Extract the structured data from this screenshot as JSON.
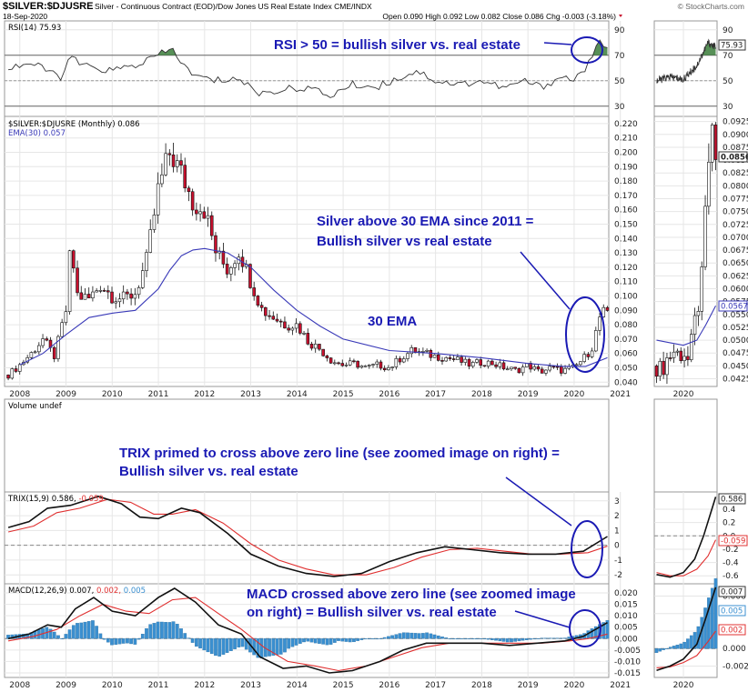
{
  "header": {
    "symbol": "$SILVER:$DJUSRE",
    "description": "Silver - Continuous Contract (EOD)/Dow Jones US Real Estate Index  CME/INDX",
    "brand": "© StockCharts.com",
    "date": "18-Sep-2020",
    "quote": "Open 0.090  High 0.092  Low 0.082  Close 0.086  Chg -0.003 (-3.18%)"
  },
  "colors": {
    "up": "#ffffff",
    "down": "#c8102e",
    "ema": "#3a3ab8",
    "trix": "#111111",
    "signal": "#e03030",
    "hist": "#3a8fd0",
    "annotation": "#1a1ab4",
    "rsi_fill": "#3a7d3a"
  },
  "panels": {
    "rsi_label": "RSI(14) 75.93",
    "rsi_value_tag": "75.93",
    "price_label": "$SILVER:$DJUSRE (Monthly) 0.086",
    "ema_label": "EMA(30) 0.057",
    "volume_label": "Volume undef",
    "trix_label": "TRIX(15,9) 0.586, -0.059",
    "trix_label_main": "TRIX(15,9) 0.586,",
    "trix_label_sig": "-0.059",
    "macd_label_main": "MACD(12,26,9) 0.007,",
    "macd_label_sig": "0.002,",
    "macd_label_hist": "0.005",
    "price_tag": "0.0856",
    "ema_tag": "0.0567",
    "trix_tag": "0.586",
    "trix_sig_tag": "-0.059",
    "macd_tag": "0.007",
    "macd_hist_tag": "0.005",
    "macd_sig_tag": "0.002"
  },
  "annotations": {
    "rsi": "RSI > 50 = bullish silver vs. real estate",
    "ema_line1": "Silver above 30 EMA since 2011 =",
    "ema_line2": "Bullish silver vs real estate",
    "ema_label": "30 EMA",
    "trix_line1": "TRIX primed to cross above zero line (see zoomed image on right) =",
    "trix_line2": "Bullish silver vs. real estate",
    "macd_line1": "MACD crossed above zero line (see zoomed image",
    "macd_line2": "on right) = Bullish silver vs. real estate"
  },
  "chart_data": {
    "type": "line",
    "title": "$SILVER:$DJUSRE",
    "frequency": "monthly",
    "x_range": [
      2007.67,
      2020.75
    ],
    "years": [
      "2008",
      "2009",
      "2010",
      "2011",
      "2012",
      "2013",
      "2014",
      "2015",
      "2016",
      "2017",
      "2018",
      "2019",
      "2020",
      "2021"
    ],
    "price_ticks": [
      0.04,
      0.05,
      0.06,
      0.07,
      0.08,
      0.09,
      0.1,
      0.11,
      0.12,
      0.13,
      0.14,
      0.15,
      0.16,
      0.17,
      0.18,
      0.19,
      0.2,
      0.21,
      0.22
    ],
    "price_ylim": [
      0.037,
      0.225
    ],
    "price_closes": [
      {
        "x": 2007.75,
        "y": 0.045
      },
      {
        "x": 2008.0,
        "y": 0.052
      },
      {
        "x": 2008.25,
        "y": 0.06
      },
      {
        "x": 2008.5,
        "y": 0.07
      },
      {
        "x": 2008.75,
        "y": 0.058
      },
      {
        "x": 2009.0,
        "y": 0.09
      },
      {
        "x": 2009.1,
        "y": 0.135
      },
      {
        "x": 2009.25,
        "y": 0.1
      },
      {
        "x": 2009.5,
        "y": 0.098
      },
      {
        "x": 2009.75,
        "y": 0.108
      },
      {
        "x": 2010.0,
        "y": 0.1
      },
      {
        "x": 2010.25,
        "y": 0.098
      },
      {
        "x": 2010.5,
        "y": 0.102
      },
      {
        "x": 2010.75,
        "y": 0.125
      },
      {
        "x": 2011.0,
        "y": 0.175
      },
      {
        "x": 2011.25,
        "y": 0.2
      },
      {
        "x": 2011.5,
        "y": 0.185
      },
      {
        "x": 2011.75,
        "y": 0.165
      },
      {
        "x": 2012.0,
        "y": 0.16
      },
      {
        "x": 2012.25,
        "y": 0.13
      },
      {
        "x": 2012.5,
        "y": 0.118
      },
      {
        "x": 2012.75,
        "y": 0.132
      },
      {
        "x": 2013.0,
        "y": 0.11
      },
      {
        "x": 2013.25,
        "y": 0.09
      },
      {
        "x": 2013.5,
        "y": 0.085
      },
      {
        "x": 2013.75,
        "y": 0.08
      },
      {
        "x": 2014.0,
        "y": 0.08
      },
      {
        "x": 2014.25,
        "y": 0.068
      },
      {
        "x": 2014.5,
        "y": 0.063
      },
      {
        "x": 2014.75,
        "y": 0.055
      },
      {
        "x": 2015.0,
        "y": 0.052
      },
      {
        "x": 2015.25,
        "y": 0.053
      },
      {
        "x": 2015.5,
        "y": 0.05
      },
      {
        "x": 2015.75,
        "y": 0.052
      },
      {
        "x": 2016.0,
        "y": 0.05
      },
      {
        "x": 2016.25,
        "y": 0.057
      },
      {
        "x": 2016.5,
        "y": 0.062
      },
      {
        "x": 2016.75,
        "y": 0.06
      },
      {
        "x": 2017.0,
        "y": 0.058
      },
      {
        "x": 2017.25,
        "y": 0.057
      },
      {
        "x": 2017.5,
        "y": 0.055
      },
      {
        "x": 2017.75,
        "y": 0.052
      },
      {
        "x": 2018.0,
        "y": 0.054
      },
      {
        "x": 2018.25,
        "y": 0.053
      },
      {
        "x": 2018.5,
        "y": 0.05
      },
      {
        "x": 2018.75,
        "y": 0.048
      },
      {
        "x": 2019.0,
        "y": 0.052
      },
      {
        "x": 2019.25,
        "y": 0.047
      },
      {
        "x": 2019.5,
        "y": 0.05
      },
      {
        "x": 2019.75,
        "y": 0.048
      },
      {
        "x": 2020.0,
        "y": 0.05
      },
      {
        "x": 2020.25,
        "y": 0.058
      },
      {
        "x": 2020.4,
        "y": 0.065
      },
      {
        "x": 2020.55,
        "y": 0.085
      },
      {
        "x": 2020.65,
        "y": 0.089
      },
      {
        "x": 2020.72,
        "y": 0.086
      }
    ],
    "ema30": [
      {
        "x": 2008.0,
        "y": 0.052
      },
      {
        "x": 2008.5,
        "y": 0.06
      },
      {
        "x": 2009.0,
        "y": 0.073
      },
      {
        "x": 2009.5,
        "y": 0.085
      },
      {
        "x": 2010.0,
        "y": 0.088
      },
      {
        "x": 2010.5,
        "y": 0.09
      },
      {
        "x": 2011.0,
        "y": 0.105
      },
      {
        "x": 2011.25,
        "y": 0.118
      },
      {
        "x": 2011.5,
        "y": 0.128
      },
      {
        "x": 2011.75,
        "y": 0.132
      },
      {
        "x": 2012.0,
        "y": 0.133
      },
      {
        "x": 2012.5,
        "y": 0.13
      },
      {
        "x": 2013.0,
        "y": 0.12
      },
      {
        "x": 2013.5,
        "y": 0.104
      },
      {
        "x": 2014.0,
        "y": 0.09
      },
      {
        "x": 2014.5,
        "y": 0.079
      },
      {
        "x": 2015.0,
        "y": 0.07
      },
      {
        "x": 2016.0,
        "y": 0.062
      },
      {
        "x": 2017.0,
        "y": 0.06
      },
      {
        "x": 2018.0,
        "y": 0.057
      },
      {
        "x": 2019.0,
        "y": 0.053
      },
      {
        "x": 2019.75,
        "y": 0.051
      },
      {
        "x": 2020.25,
        "y": 0.051
      },
      {
        "x": 2020.72,
        "y": 0.057
      }
    ],
    "rsi_ticks": [
      30,
      50,
      70,
      90
    ],
    "rsi_ylim": [
      22,
      97
    ],
    "rsi": [
      {
        "x": 2007.75,
        "y": 60
      },
      {
        "x": 2008.2,
        "y": 64
      },
      {
        "x": 2008.6,
        "y": 58
      },
      {
        "x": 2008.9,
        "y": 53
      },
      {
        "x": 2009.1,
        "y": 68
      },
      {
        "x": 2009.5,
        "y": 60
      },
      {
        "x": 2010.0,
        "y": 58
      },
      {
        "x": 2010.5,
        "y": 62
      },
      {
        "x": 2011.0,
        "y": 70
      },
      {
        "x": 2011.3,
        "y": 75
      },
      {
        "x": 2011.7,
        "y": 55
      },
      {
        "x": 2012.2,
        "y": 50
      },
      {
        "x": 2012.7,
        "y": 52
      },
      {
        "x": 2013.2,
        "y": 40
      },
      {
        "x": 2013.7,
        "y": 43
      },
      {
        "x": 2014.2,
        "y": 45
      },
      {
        "x": 2014.7,
        "y": 38
      },
      {
        "x": 2015.2,
        "y": 47
      },
      {
        "x": 2015.7,
        "y": 45
      },
      {
        "x": 2016.2,
        "y": 52
      },
      {
        "x": 2016.6,
        "y": 58
      },
      {
        "x": 2017.0,
        "y": 50
      },
      {
        "x": 2017.5,
        "y": 47
      },
      {
        "x": 2018.0,
        "y": 50
      },
      {
        "x": 2018.5,
        "y": 44
      },
      {
        "x": 2018.9,
        "y": 50
      },
      {
        "x": 2019.3,
        "y": 45
      },
      {
        "x": 2019.7,
        "y": 53
      },
      {
        "x": 2020.0,
        "y": 51
      },
      {
        "x": 2020.3,
        "y": 62
      },
      {
        "x": 2020.55,
        "y": 80
      },
      {
        "x": 2020.72,
        "y": 76
      }
    ],
    "trix_ticks": [
      -2,
      -1,
      0,
      1,
      2,
      3
    ],
    "trix_ylim": [
      -2.6,
      3.6
    ],
    "trix": [
      {
        "x": 2007.75,
        "y": 1.2
      },
      {
        "x": 2008.2,
        "y": 1.6
      },
      {
        "x": 2008.6,
        "y": 2.5
      },
      {
        "x": 2009.1,
        "y": 2.7
      },
      {
        "x": 2009.7,
        "y": 3.3
      },
      {
        "x": 2010.2,
        "y": 2.8
      },
      {
        "x": 2010.6,
        "y": 1.9
      },
      {
        "x": 2011.0,
        "y": 1.8
      },
      {
        "x": 2011.5,
        "y": 2.5
      },
      {
        "x": 2011.9,
        "y": 2.2
      },
      {
        "x": 2012.5,
        "y": 0.8
      },
      {
        "x": 2013.0,
        "y": -0.6
      },
      {
        "x": 2013.6,
        "y": -1.4
      },
      {
        "x": 2014.2,
        "y": -1.9
      },
      {
        "x": 2014.8,
        "y": -2.1
      },
      {
        "x": 2015.4,
        "y": -1.9
      },
      {
        "x": 2016.0,
        "y": -1.1
      },
      {
        "x": 2016.6,
        "y": -0.5
      },
      {
        "x": 2017.2,
        "y": -0.1
      },
      {
        "x": 2017.8,
        "y": -0.3
      },
      {
        "x": 2018.4,
        "y": -0.5
      },
      {
        "x": 2019.0,
        "y": -0.6
      },
      {
        "x": 2019.6,
        "y": -0.6
      },
      {
        "x": 2020.2,
        "y": -0.4
      },
      {
        "x": 2020.72,
        "y": 0.59
      }
    ],
    "trix_signal": [
      {
        "x": 2007.75,
        "y": 0.9
      },
      {
        "x": 2008.3,
        "y": 1.3
      },
      {
        "x": 2008.8,
        "y": 2.2
      },
      {
        "x": 2009.3,
        "y": 2.5
      },
      {
        "x": 2009.9,
        "y": 3.1
      },
      {
        "x": 2010.4,
        "y": 2.9
      },
      {
        "x": 2010.9,
        "y": 2.1
      },
      {
        "x": 2011.3,
        "y": 2.1
      },
      {
        "x": 2011.8,
        "y": 2.4
      },
      {
        "x": 2012.4,
        "y": 1.5
      },
      {
        "x": 2013.0,
        "y": 0.1
      },
      {
        "x": 2013.6,
        "y": -1.0
      },
      {
        "x": 2014.2,
        "y": -1.6
      },
      {
        "x": 2014.8,
        "y": -2.0
      },
      {
        "x": 2015.5,
        "y": -2.0
      },
      {
        "x": 2016.1,
        "y": -1.5
      },
      {
        "x": 2016.7,
        "y": -0.8
      },
      {
        "x": 2017.3,
        "y": -0.3
      },
      {
        "x": 2017.9,
        "y": -0.2
      },
      {
        "x": 2018.5,
        "y": -0.4
      },
      {
        "x": 2019.1,
        "y": -0.6
      },
      {
        "x": 2019.7,
        "y": -0.6
      },
      {
        "x": 2020.3,
        "y": -0.5
      },
      {
        "x": 2020.72,
        "y": -0.06
      }
    ],
    "macd_ticks": [
      -0.015,
      -0.01,
      -0.005,
      0.0,
      0.005,
      0.01,
      0.015,
      0.02
    ],
    "macd_ylim": [
      -0.017,
      0.024
    ],
    "macd": [
      {
        "x": 2007.75,
        "y": 0.0
      },
      {
        "x": 2008.2,
        "y": 0.002
      },
      {
        "x": 2008.6,
        "y": 0.006
      },
      {
        "x": 2008.9,
        "y": 0.005
      },
      {
        "x": 2009.2,
        "y": 0.013
      },
      {
        "x": 2009.6,
        "y": 0.018
      },
      {
        "x": 2010.0,
        "y": 0.012
      },
      {
        "x": 2010.5,
        "y": 0.01
      },
      {
        "x": 2011.0,
        "y": 0.018
      },
      {
        "x": 2011.35,
        "y": 0.022
      },
      {
        "x": 2011.8,
        "y": 0.016
      },
      {
        "x": 2012.3,
        "y": 0.006
      },
      {
        "x": 2012.8,
        "y": 0.002
      },
      {
        "x": 2013.2,
        "y": -0.008
      },
      {
        "x": 2013.7,
        "y": -0.013
      },
      {
        "x": 2014.2,
        "y": -0.012
      },
      {
        "x": 2014.7,
        "y": -0.015
      },
      {
        "x": 2015.2,
        "y": -0.014
      },
      {
        "x": 2015.8,
        "y": -0.01
      },
      {
        "x": 2016.3,
        "y": -0.005
      },
      {
        "x": 2016.8,
        "y": -0.002
      },
      {
        "x": 2017.4,
        "y": -0.002
      },
      {
        "x": 2018.0,
        "y": -0.002
      },
      {
        "x": 2018.6,
        "y": -0.003
      },
      {
        "x": 2019.2,
        "y": -0.002
      },
      {
        "x": 2019.8,
        "y": -0.001
      },
      {
        "x": 2020.2,
        "y": 0.001
      },
      {
        "x": 2020.72,
        "y": 0.007
      }
    ],
    "macd_signal": [
      {
        "x": 2007.75,
        "y": -0.001
      },
      {
        "x": 2008.3,
        "y": 0.001
      },
      {
        "x": 2008.8,
        "y": 0.004
      },
      {
        "x": 2009.3,
        "y": 0.01
      },
      {
        "x": 2009.8,
        "y": 0.015
      },
      {
        "x": 2010.3,
        "y": 0.012
      },
      {
        "x": 2010.8,
        "y": 0.011
      },
      {
        "x": 2011.3,
        "y": 0.017
      },
      {
        "x": 2011.8,
        "y": 0.018
      },
      {
        "x": 2012.3,
        "y": 0.011
      },
      {
        "x": 2012.8,
        "y": 0.004
      },
      {
        "x": 2013.3,
        "y": -0.004
      },
      {
        "x": 2013.8,
        "y": -0.01
      },
      {
        "x": 2014.4,
        "y": -0.012
      },
      {
        "x": 2014.9,
        "y": -0.014
      },
      {
        "x": 2015.5,
        "y": -0.012
      },
      {
        "x": 2016.1,
        "y": -0.008
      },
      {
        "x": 2016.7,
        "y": -0.004
      },
      {
        "x": 2017.3,
        "y": -0.002
      },
      {
        "x": 2018.0,
        "y": -0.002
      },
      {
        "x": 2018.6,
        "y": -0.002
      },
      {
        "x": 2019.3,
        "y": -0.002
      },
      {
        "x": 2019.9,
        "y": -0.001
      },
      {
        "x": 2020.3,
        "y": 0.0
      },
      {
        "x": 2020.72,
        "y": 0.002
      }
    ],
    "xlabel": "",
    "ylabel": ""
  },
  "zoom": {
    "years": [
      "2020"
    ],
    "x_range": [
      2019.35,
      2020.75
    ],
    "price_ticks": [
      0.0425,
      0.045,
      0.0475,
      0.05,
      0.0525,
      0.055,
      0.0575,
      0.06,
      0.0625,
      0.065,
      0.0675,
      0.07,
      0.0725,
      0.075,
      0.0775,
      0.08,
      0.0825,
      0.085,
      0.0875,
      0.09,
      0.0925
    ],
    "price_tick_labels": [
      "0.0425",
      "0.0450",
      "0.0475",
      "0.0500",
      "0.0525",
      "0.0550",
      "0.0575",
      "0.0600",
      "0.0625",
      "0.0650",
      "0.0675",
      "0.0700",
      "0.0725",
      "0.0750",
      "0.0775",
      "0.0800",
      "0.0825",
      "0.0850",
      "0.0875",
      "0.0900",
      "0.0925"
    ],
    "price_ylim": [
      0.041,
      0.0935
    ],
    "trix_ticks": [
      -0.6,
      -0.4,
      -0.2,
      0.0,
      0.2,
      0.4
    ],
    "trix_tick_labels": [
      "-0.6",
      "-0.4",
      "-0.2",
      "0.0",
      "0.2",
      "0.4"
    ],
    "trix_ylim": [
      -0.72,
      0.66
    ],
    "macd_ticks": [
      -0.002,
      0.0,
      0.002,
      0.004,
      0.006
    ],
    "macd_tick_labels": [
      "-0.002",
      "0.000",
      "0.002",
      "0.004",
      "0.006"
    ],
    "macd_ylim": [
      -0.0033,
      0.0074
    ],
    "price_closes": [
      {
        "x": 2019.4,
        "y": 0.045
      },
      {
        "x": 2019.5,
        "y": 0.044
      },
      {
        "x": 2019.6,
        "y": 0.046
      },
      {
        "x": 2019.7,
        "y": 0.047
      },
      {
        "x": 2019.8,
        "y": 0.048
      },
      {
        "x": 2019.9,
        "y": 0.047
      },
      {
        "x": 2020.0,
        "y": 0.048
      },
      {
        "x": 2020.1,
        "y": 0.046
      },
      {
        "x": 2020.2,
        "y": 0.05
      },
      {
        "x": 2020.3,
        "y": 0.056
      },
      {
        "x": 2020.4,
        "y": 0.06
      },
      {
        "x": 2020.5,
        "y": 0.076
      },
      {
        "x": 2020.6,
        "y": 0.09
      },
      {
        "x": 2020.72,
        "y": 0.0856
      }
    ],
    "ema30": [
      {
        "x": 2019.4,
        "y": 0.05
      },
      {
        "x": 2019.7,
        "y": 0.0495
      },
      {
        "x": 2020.0,
        "y": 0.049
      },
      {
        "x": 2020.3,
        "y": 0.05
      },
      {
        "x": 2020.5,
        "y": 0.053
      },
      {
        "x": 2020.72,
        "y": 0.0567
      }
    ],
    "trix": [
      {
        "x": 2019.4,
        "y": -0.58
      },
      {
        "x": 2019.7,
        "y": -0.62
      },
      {
        "x": 2020.0,
        "y": -0.55
      },
      {
        "x": 2020.25,
        "y": -0.35
      },
      {
        "x": 2020.45,
        "y": 0.0
      },
      {
        "x": 2020.72,
        "y": 0.586
      }
    ],
    "trix_signal": [
      {
        "x": 2019.4,
        "y": -0.55
      },
      {
        "x": 2019.7,
        "y": -0.6
      },
      {
        "x": 2020.0,
        "y": -0.6
      },
      {
        "x": 2020.3,
        "y": -0.5
      },
      {
        "x": 2020.55,
        "y": -0.3
      },
      {
        "x": 2020.72,
        "y": -0.059
      }
    ],
    "macd": [
      {
        "x": 2019.4,
        "y": -0.0025
      },
      {
        "x": 2019.7,
        "y": -0.002
      },
      {
        "x": 2020.0,
        "y": -0.0012
      },
      {
        "x": 2020.3,
        "y": 0.0005
      },
      {
        "x": 2020.5,
        "y": 0.0035
      },
      {
        "x": 2020.72,
        "y": 0.007
      }
    ],
    "macd_signal": [
      {
        "x": 2019.4,
        "y": -0.0022
      },
      {
        "x": 2019.7,
        "y": -0.0021
      },
      {
        "x": 2020.0,
        "y": -0.0016
      },
      {
        "x": 2020.3,
        "y": -0.0008
      },
      {
        "x": 2020.55,
        "y": 0.0008
      },
      {
        "x": 2020.72,
        "y": 0.002
      }
    ],
    "rsi": [
      {
        "x": 2019.4,
        "y": 50
      },
      {
        "x": 2019.7,
        "y": 53
      },
      {
        "x": 2020.0,
        "y": 51
      },
      {
        "x": 2020.3,
        "y": 62
      },
      {
        "x": 2020.55,
        "y": 80
      },
      {
        "x": 2020.72,
        "y": 76
      }
    ]
  }
}
